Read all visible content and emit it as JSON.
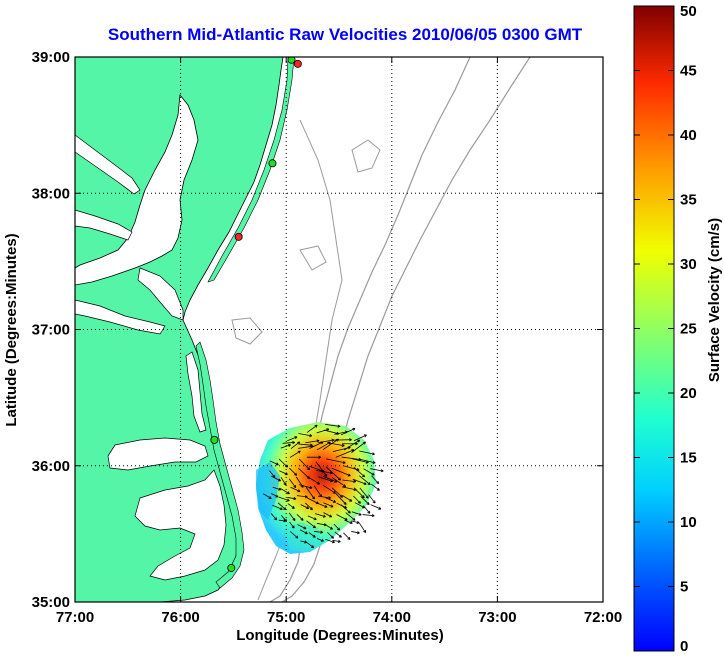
{
  "title": "Southern Mid-Atlantic Raw Velocities 2010/06/05 0300 GMT",
  "x_axis": {
    "label": "Longitude (Degrees:Minutes)",
    "range": [
      -77,
      -72
    ],
    "ticks": [
      {
        "value": -77,
        "label": "77:00"
      },
      {
        "value": -76,
        "label": "76:00"
      },
      {
        "value": -75,
        "label": "75:00"
      },
      {
        "value": -74,
        "label": "74:00"
      },
      {
        "value": -73,
        "label": "73:00"
      },
      {
        "value": -72,
        "label": "72:00"
      }
    ]
  },
  "y_axis": {
    "label": "Latitude (Degrees:Minutes)",
    "range": [
      35,
      39
    ],
    "ticks": [
      {
        "value": 35,
        "label": "35:00"
      },
      {
        "value": 36,
        "label": "36:00"
      },
      {
        "value": 37,
        "label": "37:00"
      },
      {
        "value": 38,
        "label": "38:00"
      },
      {
        "value": 39,
        "label": "39:00"
      }
    ]
  },
  "grid": "dotted",
  "colorbar": {
    "label": "Surface Velocity (cm/s)",
    "range": [
      0,
      50
    ],
    "ticks": [
      "0",
      "5",
      "10",
      "15",
      "20",
      "25",
      "30",
      "35",
      "40",
      "45",
      "50"
    ],
    "colormap": "jet"
  },
  "colors": {
    "land": "#55f5a8",
    "water": "#ffffff",
    "coast": "#000000",
    "isobath": "#9a9a9a",
    "station_ok": "#22dd22",
    "station_bad": "#ff2222"
  },
  "stations": [
    {
      "lon": -74.89,
      "lat": 38.95,
      "status": "bad"
    },
    {
      "lon": -74.95,
      "lat": 38.98,
      "status": "ok"
    },
    {
      "lon": -75.13,
      "lat": 38.22,
      "status": "ok"
    },
    {
      "lon": -75.45,
      "lat": 37.68,
      "status": "bad"
    },
    {
      "lon": -75.68,
      "lat": 36.19,
      "status": "ok"
    },
    {
      "lon": -75.52,
      "lat": 35.25,
      "status": "ok"
    }
  ],
  "velocity_field": {
    "center": {
      "lon": -74.7,
      "lat": 35.85
    },
    "extent": {
      "lon_min": -75.25,
      "lon_max": -74.2,
      "lat_min": 35.38,
      "lat_max": 36.3
    },
    "max_speed_cms": 46,
    "peak_location": {
      "lon": -74.58,
      "lat": 36.05
    },
    "dominant_direction": "east-southeast"
  }
}
